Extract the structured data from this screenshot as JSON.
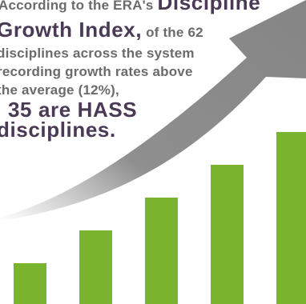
{
  "caption": {
    "line1_prefix": "According to the ERA's ",
    "line1_emph": "Discipline",
    "line2_emph": "Growth Index,",
    "line2_rest": " of the 62",
    "line3": "disciplines across the system",
    "line4": "recording growth rates above",
    "line5": "the average (12%),",
    "line6": "35 are HASS",
    "line7": "disciplines."
  },
  "graphic": {
    "bar_levels": [
      0.24,
      0.43,
      0.62,
      0.81,
      1.0
    ],
    "bar_color": "#7ab32e",
    "arrow_color": "#8c8c8c"
  }
}
